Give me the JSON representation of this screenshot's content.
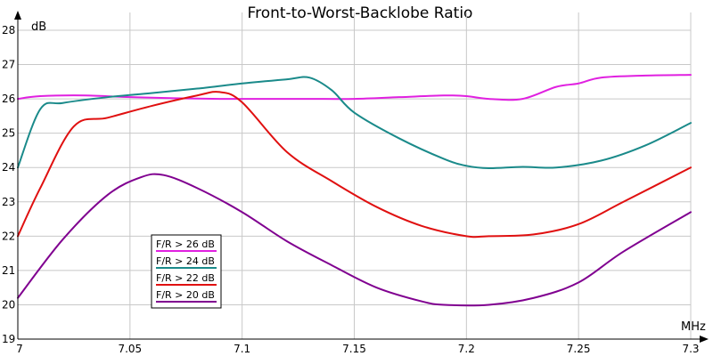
{
  "chart_data": {
    "type": "line",
    "title": "Front-to-Worst-Backlobe Ratio",
    "xlabel": "MHz",
    "ylabel": "dB",
    "xlim": [
      7.0,
      7.3
    ],
    "ylim": [
      19,
      28
    ],
    "x_ticks": [
      "7",
      "7.05",
      "7.1",
      "7.15",
      "7.2",
      "7.25",
      "7.3"
    ],
    "y_ticks": [
      "19",
      "20",
      "21",
      "22",
      "23",
      "24",
      "25",
      "26",
      "27",
      "28"
    ],
    "grid": true,
    "legend_position": "center-left",
    "series": [
      {
        "name": "F/R > 26 dB",
        "color": "#e020e0",
        "x": [
          7.0,
          7.01,
          7.03,
          7.05,
          7.07,
          7.09,
          7.11,
          7.13,
          7.15,
          7.17,
          7.19,
          7.2,
          7.21,
          7.225,
          7.24,
          7.25,
          7.26,
          7.28,
          7.3
        ],
        "y": [
          26.0,
          26.08,
          26.1,
          26.05,
          26.02,
          26.0,
          26.0,
          26.0,
          26.0,
          26.05,
          26.1,
          26.08,
          26.0,
          26.0,
          26.35,
          26.45,
          26.62,
          26.68,
          26.7
        ]
      },
      {
        "name": "F/R > 24 dB",
        "color": "#1a8a8a",
        "x": [
          7.0,
          7.01,
          7.02,
          7.04,
          7.06,
          7.08,
          7.1,
          7.12,
          7.13,
          7.14,
          7.15,
          7.17,
          7.19,
          7.2,
          7.21,
          7.225,
          7.24,
          7.26,
          7.28,
          7.3
        ],
        "y": [
          24.0,
          25.7,
          25.88,
          26.05,
          26.17,
          26.3,
          26.45,
          26.57,
          26.62,
          26.25,
          25.6,
          24.85,
          24.25,
          24.05,
          23.98,
          24.02,
          24.0,
          24.2,
          24.65,
          25.3
        ]
      },
      {
        "name": "F/R > 22 dB",
        "color": "#e01010",
        "x": [
          7.0,
          7.01,
          7.025,
          7.04,
          7.06,
          7.08,
          7.09,
          7.1,
          7.12,
          7.14,
          7.16,
          7.18,
          7.2,
          7.21,
          7.23,
          7.25,
          7.27,
          7.3
        ],
        "y": [
          22.0,
          23.4,
          25.2,
          25.45,
          25.8,
          26.1,
          26.2,
          25.9,
          24.45,
          23.6,
          22.85,
          22.3,
          22.0,
          22.0,
          22.05,
          22.35,
          23.0,
          24.0
        ]
      },
      {
        "name": "F/R > 20 dB",
        "color": "#800090",
        "x": [
          7.0,
          7.02,
          7.04,
          7.055,
          7.065,
          7.08,
          7.1,
          7.12,
          7.14,
          7.16,
          7.18,
          7.19,
          7.21,
          7.23,
          7.25,
          7.27,
          7.3
        ],
        "y": [
          20.2,
          21.9,
          23.2,
          23.72,
          23.78,
          23.4,
          22.7,
          21.85,
          21.15,
          20.5,
          20.1,
          20.0,
          20.0,
          20.2,
          20.65,
          21.55,
          22.7
        ]
      }
    ]
  }
}
